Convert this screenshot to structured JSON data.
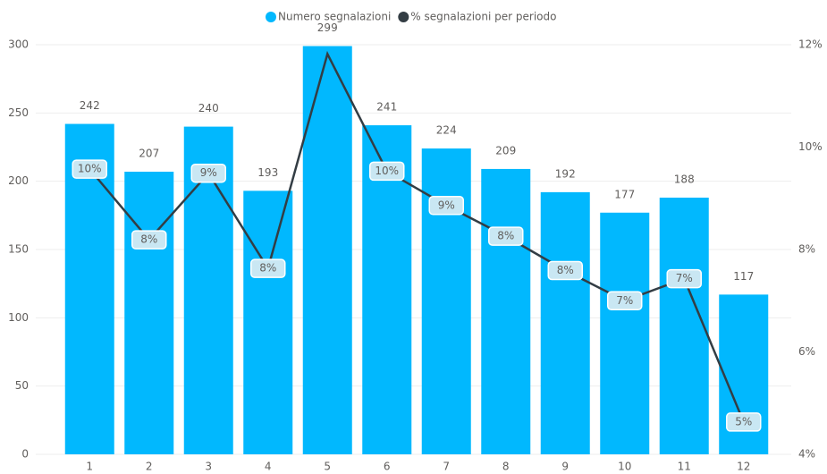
{
  "chart_data": {
    "type": "bar",
    "categories": [
      "1",
      "2",
      "3",
      "4",
      "5",
      "6",
      "7",
      "8",
      "9",
      "10",
      "11",
      "12"
    ],
    "series": [
      {
        "name": "Numero segnalazioni",
        "color": "#01b8fe",
        "type": "bar",
        "values": [
          242,
          207,
          240,
          193,
          299,
          241,
          224,
          209,
          192,
          177,
          188,
          117
        ]
      },
      {
        "name": "% segnalazioni per periodo",
        "color": "#333d44",
        "type": "line",
        "axis": "y2",
        "values": [
          9.57,
          8.19,
          9.49,
          7.63,
          11.82,
          9.53,
          8.86,
          8.26,
          7.59,
          7.0,
          7.43,
          4.63
        ],
        "value_labels": [
          "10%",
          "8%",
          "9%",
          "8%",
          null,
          "10%",
          "9%",
          "8%",
          "8%",
          "7%",
          "7%",
          "5%"
        ]
      }
    ],
    "ylim": [
      0,
      300
    ],
    "yticks": [
      0,
      50,
      100,
      150,
      200,
      250,
      300
    ],
    "y2lim": [
      4,
      12
    ],
    "y2ticks": [
      {
        "value": 4,
        "label": "4%"
      },
      {
        "value": 6,
        "label": "6%"
      },
      {
        "value": 8,
        "label": "8%"
      },
      {
        "value": 10,
        "label": "10%"
      },
      {
        "value": 12,
        "label": "12%"
      }
    ],
    "grid": true,
    "legend": "top"
  }
}
